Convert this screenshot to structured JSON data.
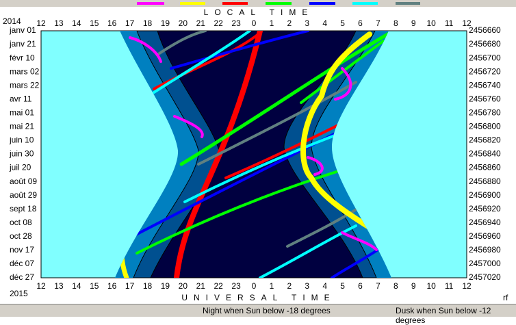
{
  "top_title": "LOCAL TIME",
  "bottom_title": "UNIVERSAL TIME",
  "year_start": "2014",
  "year_end": "2015",
  "corner_label": "rf",
  "hours_top": [
    "12",
    "13",
    "14",
    "15",
    "16",
    "17",
    "18",
    "19",
    "20",
    "21",
    "22",
    "23",
    "0",
    "1",
    "2",
    "3",
    "4",
    "5",
    "6",
    "7",
    "8",
    "9",
    "10",
    "11",
    "12"
  ],
  "hours_bottom": [
    "12",
    "13",
    "14",
    "15",
    "16",
    "17",
    "18",
    "19",
    "20",
    "21",
    "22",
    "23",
    "0",
    "1",
    "2",
    "3",
    "4",
    "5",
    "6",
    "7",
    "8",
    "9",
    "10",
    "11",
    "12"
  ],
  "dates": [
    "janv 01",
    "janv 21",
    "févr 10",
    "mars 02",
    "mars 22",
    "avr 11",
    "mai 01",
    "mai 21",
    "juin 10",
    "juin 30",
    "juil 20",
    "août 09",
    "août 29",
    "sept 18",
    "oct 08",
    "oct 28",
    "nov 17",
    "déc 07",
    "déc 27"
  ],
  "julian_days": [
    "2456660",
    "2456680",
    "2456700",
    "2456720",
    "2456740",
    "2456760",
    "2456780",
    "2456800",
    "2456820",
    "2456840",
    "2456860",
    "2456880",
    "2456900",
    "2456920",
    "2456940",
    "2456960",
    "2456980",
    "2457000",
    "2457020"
  ],
  "status": {
    "night": "Night when Sun below -18 degrees",
    "dusk": "Dusk when Sun below -12 degrees"
  }
}
